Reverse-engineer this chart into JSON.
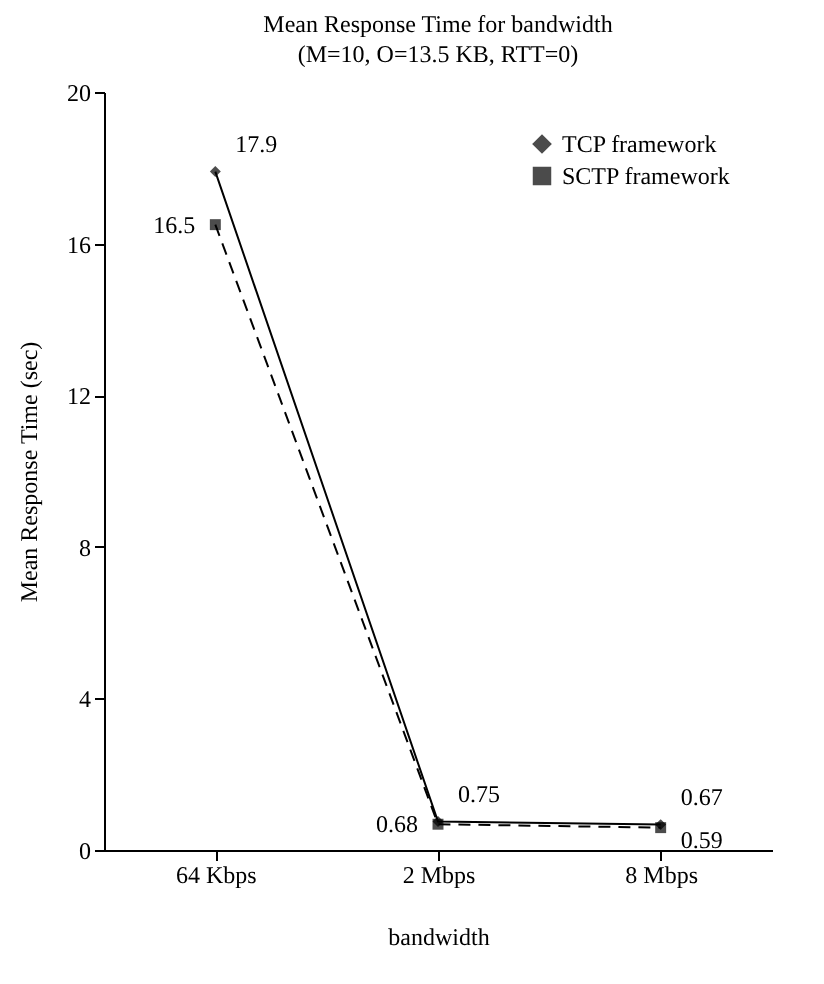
{
  "chart_data": {
    "type": "line",
    "title": "Mean Response Time for bandwidth",
    "subtitle": "(M=10, O=13.5 KB, RTT=0)",
    "xlabel": "bandwidth",
    "ylabel": "Mean Response Time (sec)",
    "categories": [
      "64 Kbps",
      "2 Mbps",
      "8 Mbps"
    ],
    "series": [
      {
        "name": "TCP framework",
        "color": "#000000",
        "marker": "diamond",
        "line_style": "solid",
        "values": [
          17.9,
          0.75,
          0.67
        ]
      },
      {
        "name": "SCTP framework",
        "color": "#000000",
        "marker": "square",
        "line_style": "dashed",
        "values": [
          16.5,
          0.68,
          0.59
        ]
      }
    ],
    "ylim": [
      0,
      20
    ],
    "yticks": [
      0,
      4,
      8,
      12,
      16,
      20
    ],
    "grid": false,
    "legend": "top right",
    "data_labels": true
  }
}
